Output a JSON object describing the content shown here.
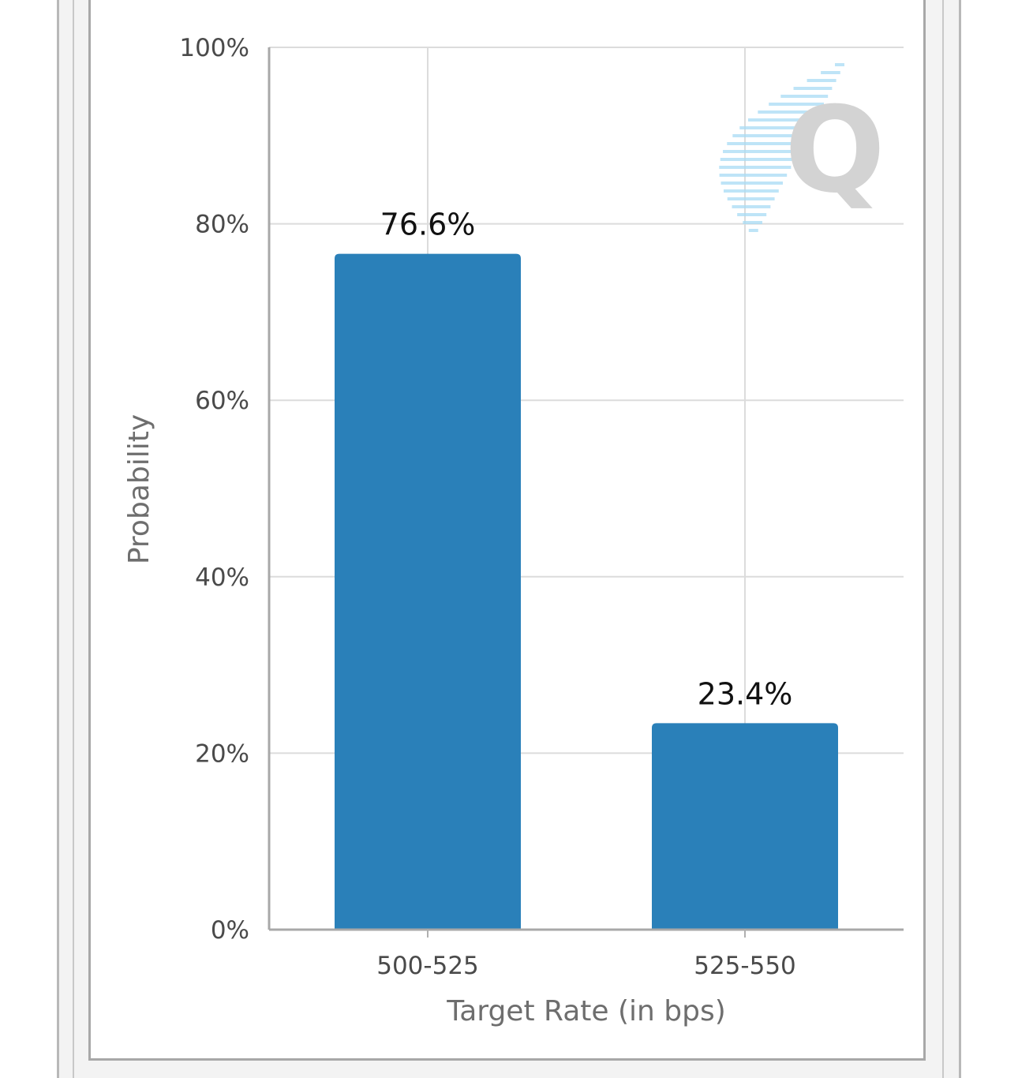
{
  "chart_data": {
    "type": "bar",
    "categories": [
      "500-525",
      "525-550"
    ],
    "values": [
      76.6,
      23.4
    ],
    "data_labels": [
      "76.6%",
      "23.4%"
    ],
    "title": "",
    "xlabel": "Target Rate (in bps)",
    "ylabel": "Probability",
    "ylim": [
      0,
      100
    ],
    "yticks": [
      0,
      20,
      40,
      60,
      80,
      100
    ],
    "ytick_labels": [
      "0%",
      "20%",
      "40%",
      "60%",
      "80%",
      "100%"
    ],
    "grid": true,
    "legend": "none",
    "bar_color": "#2a80b9"
  },
  "watermark": {
    "letter": "Q"
  }
}
